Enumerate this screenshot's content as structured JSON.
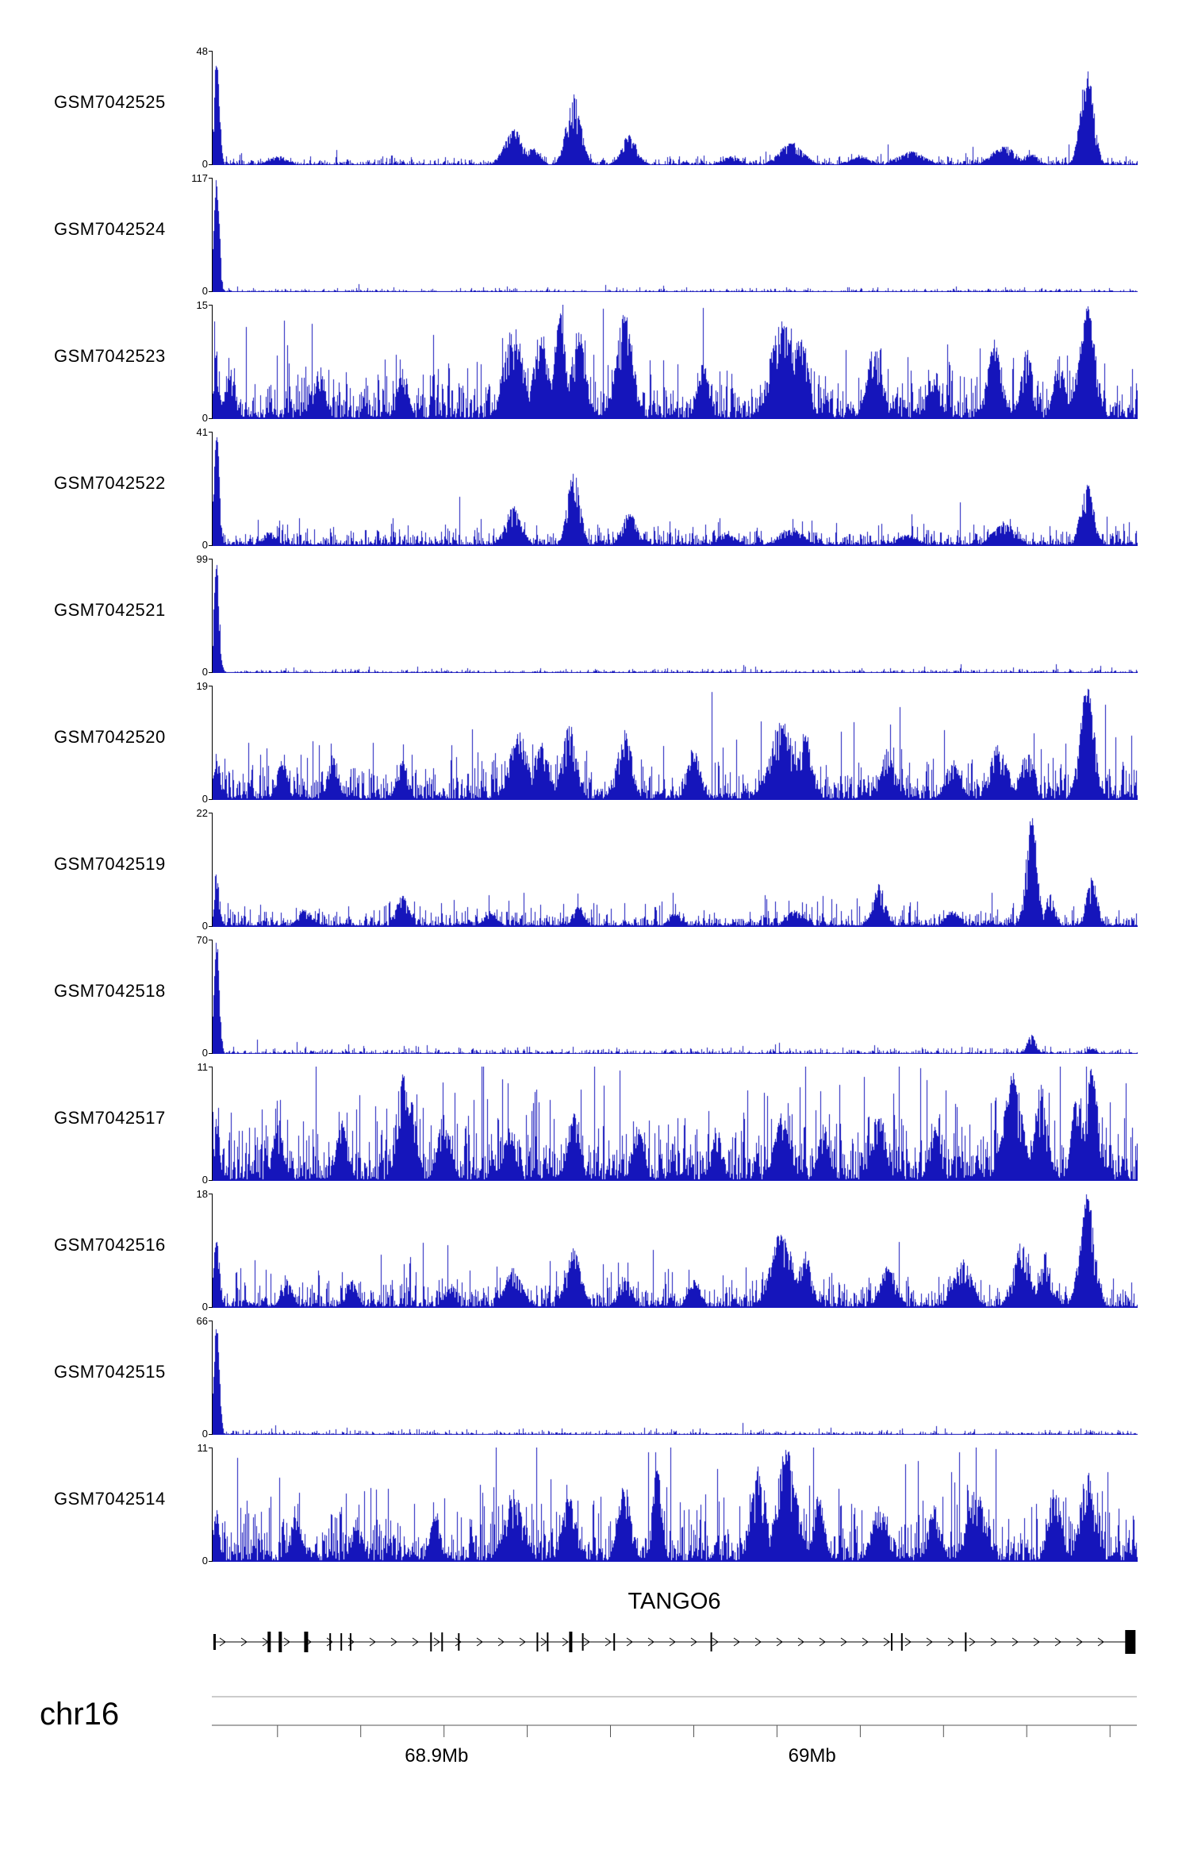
{
  "chart_data": {
    "type": "area",
    "description": "Genome browser read-coverage tracks over the TANGO6 locus; peaks given as [x_fraction, rel_height, width_fraction] of each track panel, heights relative to track ymax",
    "signal_color": "#1515bb",
    "yaxis_zero": "0",
    "region": {
      "chrom_label": "chr16",
      "xlim_labels": [
        "68.9Mb",
        "69Mb"
      ]
    },
    "tracks": [
      {
        "label": "GSM7042525",
        "ymax": "48",
        "noise": 0.033,
        "peaks": [
          [
            0.004,
            1.0,
            0.003
          ],
          [
            0.07,
            0.08,
            0.01
          ],
          [
            0.325,
            0.32,
            0.01
          ],
          [
            0.345,
            0.15,
            0.008
          ],
          [
            0.39,
            0.62,
            0.008
          ],
          [
            0.45,
            0.27,
            0.008
          ],
          [
            0.56,
            0.08,
            0.01
          ],
          [
            0.625,
            0.2,
            0.013
          ],
          [
            0.7,
            0.08,
            0.012
          ],
          [
            0.755,
            0.12,
            0.015
          ],
          [
            0.855,
            0.17,
            0.013
          ],
          [
            0.885,
            0.1,
            0.008
          ],
          [
            0.945,
            0.88,
            0.007
          ]
        ]
      },
      {
        "label": "GSM7042524",
        "ymax": "117",
        "noise": 0.012,
        "peaks": [
          [
            0.004,
            1.0,
            0.003
          ]
        ]
      },
      {
        "label": "GSM7042523",
        "ymax": "15",
        "noise": 0.21,
        "peaks": [
          [
            0.004,
            0.6,
            0.003
          ],
          [
            0.018,
            0.45,
            0.006
          ],
          [
            0.115,
            0.5,
            0.006
          ],
          [
            0.205,
            0.45,
            0.006
          ],
          [
            0.325,
            0.85,
            0.01
          ],
          [
            0.355,
            0.8,
            0.008
          ],
          [
            0.375,
            0.95,
            0.006
          ],
          [
            0.395,
            0.8,
            0.008
          ],
          [
            0.445,
            0.95,
            0.009
          ],
          [
            0.53,
            0.5,
            0.006
          ],
          [
            0.615,
            0.9,
            0.013
          ],
          [
            0.635,
            0.8,
            0.008
          ],
          [
            0.715,
            0.65,
            0.008
          ],
          [
            0.78,
            0.45,
            0.006
          ],
          [
            0.845,
            0.7,
            0.008
          ],
          [
            0.88,
            0.65,
            0.006
          ],
          [
            0.915,
            0.55,
            0.006
          ],
          [
            0.945,
            1.0,
            0.009
          ]
        ]
      },
      {
        "label": "GSM7042522",
        "ymax": "41",
        "noise": 0.075,
        "peaks": [
          [
            0.004,
            1.0,
            0.003
          ],
          [
            0.06,
            0.12,
            0.008
          ],
          [
            0.325,
            0.35,
            0.009
          ],
          [
            0.39,
            0.66,
            0.007
          ],
          [
            0.45,
            0.3,
            0.008
          ],
          [
            0.555,
            0.12,
            0.01
          ],
          [
            0.625,
            0.17,
            0.013
          ],
          [
            0.75,
            0.1,
            0.012
          ],
          [
            0.855,
            0.22,
            0.012
          ],
          [
            0.945,
            0.56,
            0.007
          ]
        ]
      },
      {
        "label": "GSM7042521",
        "ymax": "99",
        "noise": 0.014,
        "peaks": [
          [
            0.004,
            1.0,
            0.003
          ]
        ]
      },
      {
        "label": "GSM7042520",
        "ymax": "19",
        "noise": 0.17,
        "peaks": [
          [
            0.004,
            0.55,
            0.003
          ],
          [
            0.075,
            0.35,
            0.006
          ],
          [
            0.13,
            0.4,
            0.006
          ],
          [
            0.205,
            0.35,
            0.006
          ],
          [
            0.33,
            0.62,
            0.01
          ],
          [
            0.355,
            0.55,
            0.008
          ],
          [
            0.385,
            0.68,
            0.008
          ],
          [
            0.445,
            0.62,
            0.008
          ],
          [
            0.52,
            0.45,
            0.007
          ],
          [
            0.615,
            0.72,
            0.013
          ],
          [
            0.64,
            0.6,
            0.008
          ],
          [
            0.73,
            0.38,
            0.009
          ],
          [
            0.8,
            0.35,
            0.008
          ],
          [
            0.85,
            0.5,
            0.01
          ],
          [
            0.88,
            0.45,
            0.007
          ],
          [
            0.945,
            1.0,
            0.008
          ]
        ]
      },
      {
        "label": "GSM7042519",
        "ymax": "22",
        "noise": 0.075,
        "peaks": [
          [
            0.004,
            0.5,
            0.003
          ],
          [
            0.1,
            0.15,
            0.008
          ],
          [
            0.205,
            0.28,
            0.007
          ],
          [
            0.3,
            0.12,
            0.008
          ],
          [
            0.395,
            0.18,
            0.006
          ],
          [
            0.5,
            0.12,
            0.008
          ],
          [
            0.63,
            0.15,
            0.01
          ],
          [
            0.72,
            0.38,
            0.007
          ],
          [
            0.8,
            0.15,
            0.008
          ],
          [
            0.885,
            1.0,
            0.006
          ],
          [
            0.905,
            0.3,
            0.005
          ],
          [
            0.95,
            0.45,
            0.006
          ]
        ]
      },
      {
        "label": "GSM7042518",
        "ymax": "70",
        "noise": 0.02,
        "peaks": [
          [
            0.004,
            1.0,
            0.003
          ],
          [
            0.885,
            0.17,
            0.005
          ],
          [
            0.95,
            0.06,
            0.005
          ]
        ]
      },
      {
        "label": "GSM7042517",
        "ymax": "11",
        "noise": 0.28,
        "peaks": [
          [
            0.004,
            0.6,
            0.003
          ],
          [
            0.07,
            0.5,
            0.006
          ],
          [
            0.14,
            0.55,
            0.006
          ],
          [
            0.205,
            0.95,
            0.007
          ],
          [
            0.215,
            0.7,
            0.005
          ],
          [
            0.25,
            0.6,
            0.007
          ],
          [
            0.32,
            0.5,
            0.006
          ],
          [
            0.39,
            0.6,
            0.006
          ],
          [
            0.46,
            0.5,
            0.006
          ],
          [
            0.545,
            0.5,
            0.006
          ],
          [
            0.615,
            0.6,
            0.008
          ],
          [
            0.66,
            0.5,
            0.006
          ],
          [
            0.72,
            0.65,
            0.007
          ],
          [
            0.78,
            0.5,
            0.006
          ],
          [
            0.865,
            0.95,
            0.01
          ],
          [
            0.895,
            0.85,
            0.007
          ],
          [
            0.935,
            0.9,
            0.006
          ],
          [
            0.95,
            1.0,
            0.007
          ]
        ]
      },
      {
        "label": "GSM7042516",
        "ymax": "18",
        "noise": 0.12,
        "peaks": [
          [
            0.004,
            0.65,
            0.003
          ],
          [
            0.08,
            0.25,
            0.006
          ],
          [
            0.15,
            0.25,
            0.006
          ],
          [
            0.255,
            0.2,
            0.006
          ],
          [
            0.325,
            0.35,
            0.01
          ],
          [
            0.39,
            0.55,
            0.008
          ],
          [
            0.445,
            0.3,
            0.007
          ],
          [
            0.52,
            0.25,
            0.007
          ],
          [
            0.615,
            0.68,
            0.012
          ],
          [
            0.64,
            0.5,
            0.007
          ],
          [
            0.73,
            0.4,
            0.008
          ],
          [
            0.81,
            0.45,
            0.01
          ],
          [
            0.875,
            0.62,
            0.009
          ],
          [
            0.9,
            0.5,
            0.006
          ],
          [
            0.945,
            1.0,
            0.008
          ]
        ]
      },
      {
        "label": "GSM7042515",
        "ymax": "66",
        "noise": 0.016,
        "peaks": [
          [
            0.004,
            1.0,
            0.003
          ]
        ]
      },
      {
        "label": "GSM7042514",
        "ymax": "11",
        "noise": 0.24,
        "peaks": [
          [
            0.004,
            0.55,
            0.003
          ],
          [
            0.09,
            0.45,
            0.006
          ],
          [
            0.155,
            0.4,
            0.006
          ],
          [
            0.24,
            0.45,
            0.006
          ],
          [
            0.325,
            0.65,
            0.01
          ],
          [
            0.385,
            0.6,
            0.008
          ],
          [
            0.445,
            0.7,
            0.007
          ],
          [
            0.48,
            0.85,
            0.005
          ],
          [
            0.59,
            0.85,
            0.008
          ],
          [
            0.62,
            1.0,
            0.011
          ],
          [
            0.655,
            0.6,
            0.006
          ],
          [
            0.72,
            0.55,
            0.008
          ],
          [
            0.78,
            0.5,
            0.007
          ],
          [
            0.825,
            0.65,
            0.01
          ],
          [
            0.91,
            0.7,
            0.007
          ],
          [
            0.945,
            0.8,
            0.008
          ]
        ]
      }
    ],
    "gene": {
      "name": "TANGO6",
      "strand": "right",
      "exons": [
        [
          0.003,
          3,
          20
        ],
        [
          0.062,
          4,
          26
        ],
        [
          0.074,
          4,
          26
        ],
        [
          0.102,
          5,
          26
        ],
        [
          0.128,
          2,
          22
        ],
        [
          0.14,
          2,
          22
        ],
        [
          0.15,
          2,
          22
        ],
        [
          0.237,
          2,
          24
        ],
        [
          0.249,
          2,
          24
        ],
        [
          0.267,
          2,
          22
        ],
        [
          0.352,
          2,
          24
        ],
        [
          0.363,
          2,
          24
        ],
        [
          0.388,
          4,
          26
        ],
        [
          0.401,
          2,
          22
        ],
        [
          0.435,
          2,
          22
        ],
        [
          0.54,
          2,
          24
        ],
        [
          0.735,
          2,
          22
        ],
        [
          0.746,
          2,
          22
        ],
        [
          0.815,
          2,
          24
        ]
      ],
      "end_box": [
        0.993,
        13,
        30
      ]
    },
    "axis": {
      "ticks": [
        0.071,
        0.161,
        0.251,
        0.341,
        0.431,
        0.521,
        0.611,
        0.701,
        0.791,
        0.881,
        0.971
      ],
      "labels": [
        {
          "text": "68.9Mb",
          "x": 0.243
        },
        {
          "text": "69Mb",
          "x": 0.649
        }
      ]
    }
  }
}
